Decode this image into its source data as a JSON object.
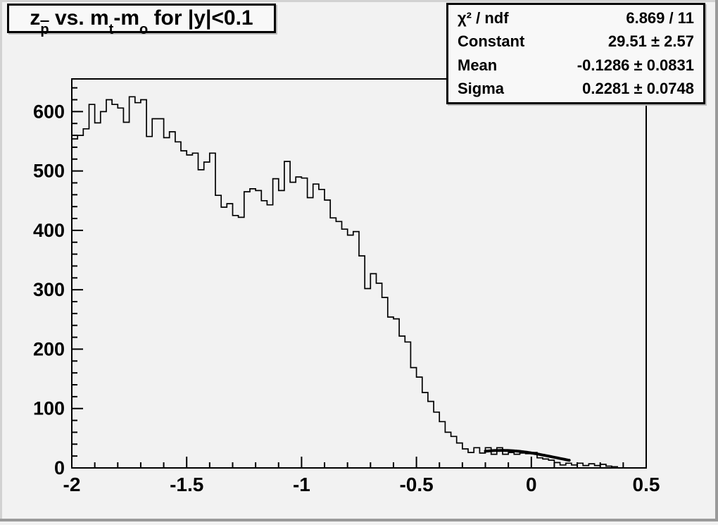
{
  "window": {
    "kind": "root-canvas-histogram"
  },
  "colors": {
    "canvas_bg": "#f2f2f2",
    "box_bg": "#f8f8f8",
    "line": "#000000",
    "text": "#000000",
    "border_shadow": "#9a9a9a"
  },
  "title": {
    "plain": "z_p(bar) vs. m_t-m_o for |y|<0.1",
    "segments": [
      {
        "t": "z",
        "s": "n"
      },
      {
        "t": "p",
        "s": "sub-bar"
      },
      {
        "t": " vs. m",
        "s": "n"
      },
      {
        "t": "t",
        "s": "sub"
      },
      {
        "t": "-m",
        "s": "n"
      },
      {
        "t": "o",
        "s": "sub"
      },
      {
        "t": " for |y|<0.1",
        "s": "n"
      }
    ]
  },
  "stats": {
    "rows": [
      {
        "label": "χ² / ndf",
        "value": "6.869 / 11"
      },
      {
        "label": "Constant",
        "value": "29.51 ± 2.57"
      },
      {
        "label": "Mean",
        "value": "-0.1286 ± 0.0831"
      },
      {
        "label": "Sigma",
        "value": "0.2281 ± 0.0748"
      }
    ]
  },
  "chart_data": {
    "type": "bar",
    "subtype": "step-histogram",
    "title": "z_p(bar) vs. m_t-m_o for |y|<0.1",
    "xlabel": "",
    "ylabel": "",
    "xlim": [
      -2.0,
      0.5
    ],
    "ylim": [
      0,
      655
    ],
    "grid": false,
    "legend": "none",
    "x_start": -2.0,
    "bin_width": 0.025,
    "x_major_ticks": [
      -2,
      -1.5,
      -1,
      -0.5,
      0,
      0.5
    ],
    "x_tick_labels": [
      "-2",
      "-1.5",
      "-1",
      "-0.5",
      "0",
      "0.5"
    ],
    "x_minor_step": 0.1,
    "y_major_ticks": [
      0,
      100,
      200,
      300,
      400,
      500,
      600
    ],
    "y_tick_labels": [
      "0",
      "100",
      "200",
      "300",
      "400",
      "500",
      "600"
    ],
    "y_minor_step": 20,
    "values": [
      554,
      560,
      571,
      612,
      581,
      600,
      620,
      612,
      606,
      582,
      625,
      615,
      620,
      558,
      588,
      588,
      556,
      566,
      549,
      534,
      527,
      530,
      502,
      515,
      530,
      459,
      439,
      445,
      425,
      422,
      465,
      470,
      467,
      450,
      443,
      487,
      467,
      516,
      481,
      490,
      488,
      455,
      478,
      469,
      451,
      421,
      415,
      402,
      392,
      398,
      357,
      302,
      327,
      311,
      287,
      254,
      251,
      222,
      212,
      169,
      153,
      127,
      112,
      94,
      78,
      60,
      53,
      42,
      32,
      26,
      34,
      25,
      34,
      23,
      34,
      23,
      26,
      23,
      25,
      24,
      26,
      17,
      15,
      13,
      9,
      5,
      8,
      5,
      8,
      4,
      7,
      4,
      6,
      3,
      2,
      0,
      0,
      0,
      0,
      0
    ],
    "fit": {
      "type": "gaussian",
      "constant": 29.51,
      "mean": -0.1286,
      "sigma": 0.2281,
      "chi2": 6.869,
      "ndf": 11,
      "draw_range": [
        -0.2,
        0.165
      ]
    }
  }
}
